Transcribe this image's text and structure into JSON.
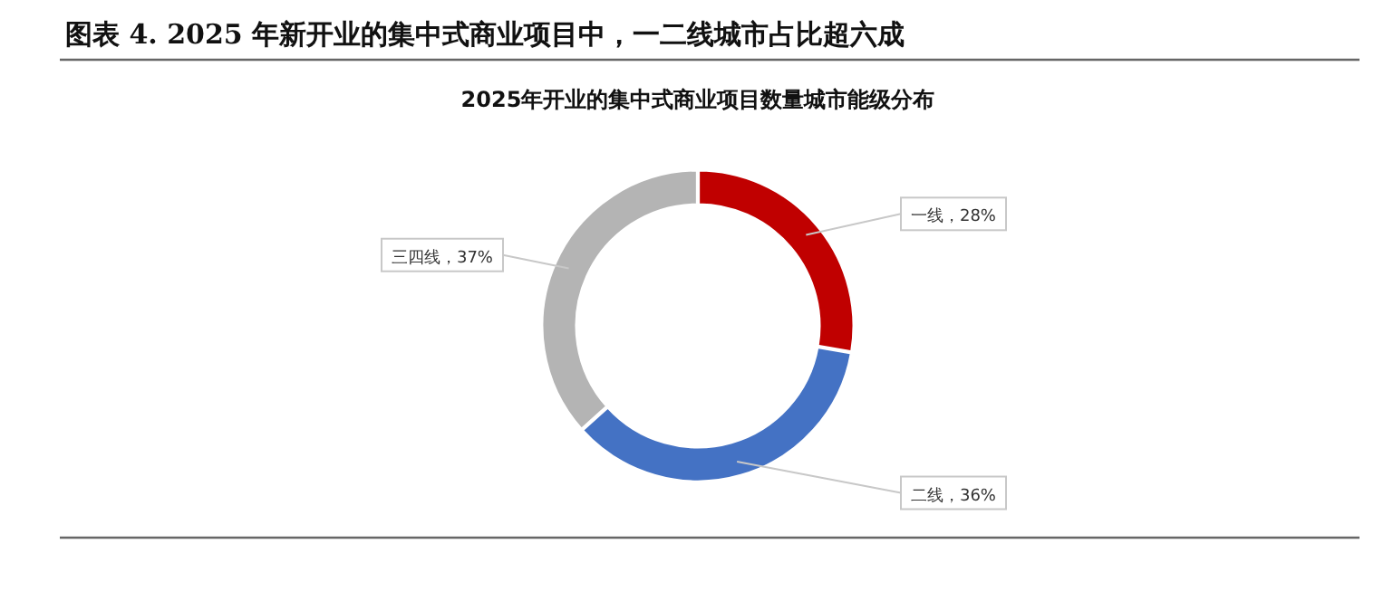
{
  "chart_data": {
    "type": "donut",
    "title": "图表 4. 2025 年新开业的集中式商业项目中，一二线城市占比超六成",
    "subtitle": "2025年开业的集中式商业项目数量城市能级分布",
    "categories": [
      "一线",
      "二线",
      "三四线"
    ],
    "values": [
      28,
      36,
      37
    ],
    "colors": [
      "#c00000",
      "#4472c4",
      "#b4b4b4"
    ],
    "value_labels": [
      "，28%",
      "，36%",
      "，37%"
    ],
    "legend": false
  }
}
